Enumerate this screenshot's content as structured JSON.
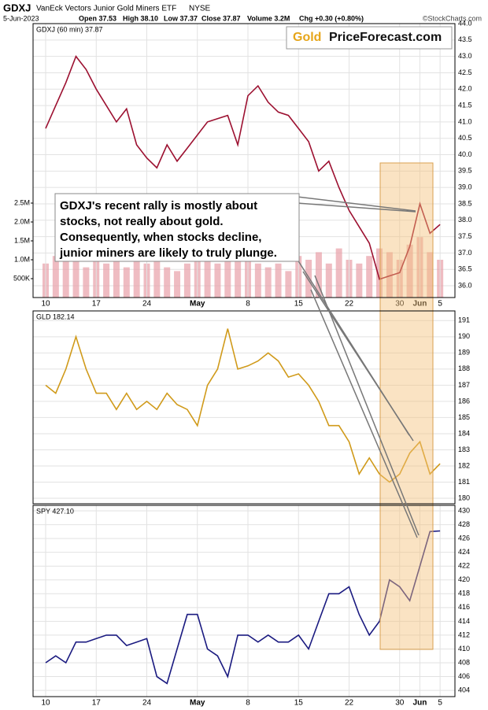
{
  "header": {
    "symbol": "GDXJ",
    "name": "VanEck Vectors Junior Gold Miners ETF",
    "exchange": "NYSE",
    "date": "5-Jun-2023",
    "stats": [
      "Open 37.53",
      "High 38.10",
      "Low 37.37",
      "Close 37.87",
      "Volume 3.2M",
      "Chg +0.30 (+0.80%)"
    ],
    "copyright": "©StockCharts.com"
  },
  "logo": {
    "left": "Gold",
    "right": "PriceForecast.com"
  },
  "annotation": {
    "lines": [
      "GDXJ's recent rally is mostly about",
      "stocks, not really about gold.",
      "Consequently, when stocks decline,",
      "junior miners are likely to truly plunge."
    ]
  },
  "chart_data": [
    {
      "type": "line",
      "label": "GDXJ (60 min) 37.87",
      "color": "#9c1030",
      "categories": [
        "10",
        null,
        null,
        null,
        null,
        "17",
        null,
        null,
        null,
        null,
        "24",
        null,
        null,
        null,
        null,
        "May",
        null,
        null,
        null,
        null,
        "8",
        null,
        null,
        null,
        null,
        "15",
        null,
        null,
        null,
        null,
        "22",
        null,
        null,
        null,
        null,
        "30",
        null,
        "Jun",
        null,
        "5"
      ],
      "values": [
        40.8,
        41.5,
        42.2,
        43.0,
        42.6,
        42.0,
        41.5,
        41.0,
        41.4,
        40.3,
        39.9,
        39.6,
        40.3,
        39.8,
        40.2,
        40.6,
        41.0,
        41.1,
        41.2,
        40.3,
        41.8,
        42.1,
        41.6,
        41.3,
        41.2,
        40.8,
        40.4,
        39.5,
        39.8,
        39.0,
        38.3,
        37.8,
        37.3,
        36.2,
        36.3,
        36.4,
        37.2,
        38.5,
        37.6,
        37.87
      ],
      "ylim": [
        35.64,
        44.0
      ],
      "yticks": [
        {
          "value": 36,
          "label": "36.0"
        },
        {
          "value": 36.5,
          "label": "36.5"
        },
        {
          "value": 37,
          "label": "37.0"
        },
        {
          "value": 37.5,
          "label": "37.5"
        },
        {
          "value": 38,
          "label": "38.0"
        },
        {
          "value": 38.5,
          "label": "38.5"
        },
        {
          "value": 39,
          "label": "39.0"
        },
        {
          "value": 39.5,
          "label": "39.5"
        },
        {
          "value": 40,
          "label": "40.0"
        },
        {
          "value": 40.5,
          "label": "40.5"
        },
        {
          "value": 41,
          "label": "41.0"
        },
        {
          "value": 41.5,
          "label": "41.5"
        },
        {
          "value": 42,
          "label": "42.0"
        },
        {
          "value": 42.5,
          "label": "42.5"
        },
        {
          "value": 43,
          "label": "43.0"
        },
        {
          "value": 43.5,
          "label": "43.5"
        },
        {
          "value": 44,
          "label": "44.0"
        }
      ],
      "volume": {
        "color": "#e8a0a8",
        "values": [
          900000,
          1100000,
          1300000,
          1200000,
          800000,
          1000000,
          900000,
          1100000,
          800000,
          1200000,
          900000,
          1000000,
          800000,
          700000,
          900000,
          1000000,
          1200000,
          900000,
          1300000,
          1100000,
          1000000,
          900000,
          800000,
          900000,
          700000,
          1100000,
          1000000,
          1200000,
          900000,
          1300000,
          1000000,
          900000,
          1100000,
          1300000,
          1200000,
          1000000,
          1400000,
          1600000,
          1200000,
          1000000
        ],
        "ylim": [
          0,
          7250000
        ],
        "yticks": [
          {
            "value": 500000,
            "label": "500K"
          },
          {
            "value": 1000000,
            "label": "1.0M"
          },
          {
            "value": 1500000,
            "label": "1.5M"
          },
          {
            "value": 2000000,
            "label": "2.0M"
          },
          {
            "value": 2500000,
            "label": "2.5M"
          }
        ]
      }
    },
    {
      "type": "line",
      "label": "GLD 182.14",
      "color": "#d09a1a",
      "values": [
        187,
        186.5,
        188,
        190,
        188,
        186.5,
        186.5,
        185.5,
        186.5,
        185.5,
        186,
        185.5,
        186.5,
        185.8,
        185.5,
        184.5,
        187,
        188,
        190.5,
        188,
        188.2,
        188.5,
        189,
        188.5,
        187.5,
        187.7,
        187,
        186,
        184.5,
        184.5,
        183.5,
        181.5,
        182.5,
        181.5,
        181,
        181.5,
        182.8,
        183.5,
        181.5,
        182.14
      ],
      "ylim": [
        179.66,
        191.6
      ],
      "yticks": [
        180,
        181,
        182,
        183,
        184,
        185,
        186,
        187,
        188,
        189,
        190,
        191
      ]
    },
    {
      "type": "line",
      "label": "SPY 427.10",
      "color": "#1a1a80",
      "categories": [
        "10",
        null,
        null,
        null,
        null,
        "17",
        null,
        null,
        null,
        null,
        "24",
        null,
        null,
        null,
        null,
        "May",
        null,
        null,
        null,
        null,
        "8",
        null,
        null,
        null,
        null,
        "15",
        null,
        null,
        null,
        null,
        "22",
        null,
        null,
        null,
        null,
        "30",
        null,
        "Jun",
        null,
        "5"
      ],
      "values": [
        408,
        409,
        408,
        411,
        411,
        411.5,
        412,
        412,
        410.5,
        411,
        411.5,
        406,
        405,
        410,
        415,
        415,
        410,
        409,
        406,
        412,
        412,
        411,
        412,
        411,
        411,
        412,
        410,
        414,
        418,
        418,
        419,
        415,
        412,
        414,
        420,
        419,
        417,
        422,
        427,
        427.1
      ],
      "ylim": [
        403.1,
        430.8
      ],
      "yticks": [
        404,
        406,
        408,
        410,
        412,
        414,
        416,
        418,
        420,
        422,
        424,
        426,
        428,
        430
      ]
    }
  ]
}
